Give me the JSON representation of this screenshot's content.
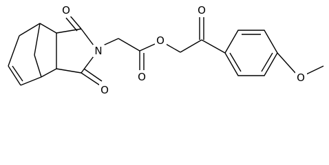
{
  "nodes": [
    {
      "label": "O"
    },
    {
      "label": "N"
    },
    {
      "label": "O"
    },
    {
      "label": "O"
    },
    {
      "label": "O"
    },
    {
      "label": "O"
    },
    {
      "label": "O"
    }
  ]
}
